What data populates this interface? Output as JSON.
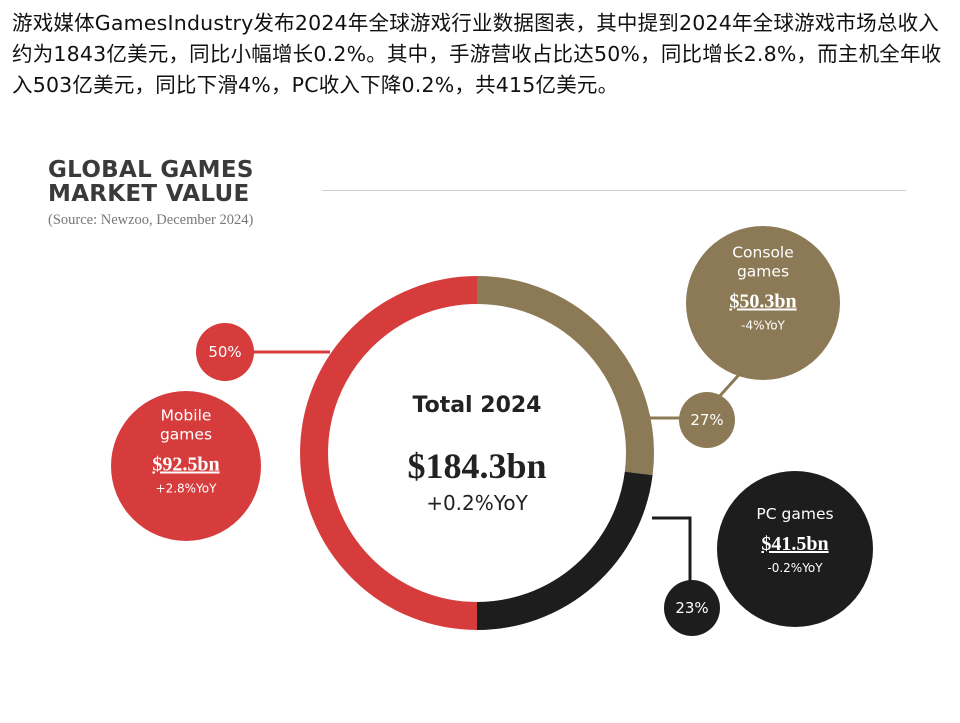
{
  "article": {
    "text": "游戏媒体GamesIndustry发布2024年全球游戏行业数据图表，其中提到2024年全球游戏市场总收入约为1843亿美元，同比小幅增长0.2%。其中，手游营收占比达50%，同比增长2.8%，而主机全年收入503亿美元，同比下滑4%，PC收入下降0.2%，共415亿美元。"
  },
  "chart_data": {
    "type": "pie",
    "title": "GLOBAL GAMES\nMARKET VALUE",
    "source": "(Source: Newzoo, December 2024)",
    "center": {
      "title": "Total 2024",
      "value": "$184.3bn",
      "change": "+0.2%YoY"
    },
    "unit": "bn USD",
    "slices": [
      {
        "name_lines": [
          "Mobile",
          "games"
        ],
        "value": 92.5,
        "value_label": "$92.5bn",
        "share": 50,
        "share_label": "50%",
        "change": "+2.8%YoY",
        "color": "#d63c3c"
      },
      {
        "name_lines": [
          "Console",
          "games"
        ],
        "value": 50.3,
        "value_label": "$50.3bn",
        "share": 27,
        "share_label": "27%",
        "change": "-4%YoY",
        "color": "#8b7a55"
      },
      {
        "name_lines": [
          "PC games"
        ],
        "value": 41.5,
        "value_label": "$41.5bn",
        "share": 23,
        "share_label": "23%",
        "change": "-0.2%YoY",
        "color": "#1d1d1d"
      }
    ]
  }
}
